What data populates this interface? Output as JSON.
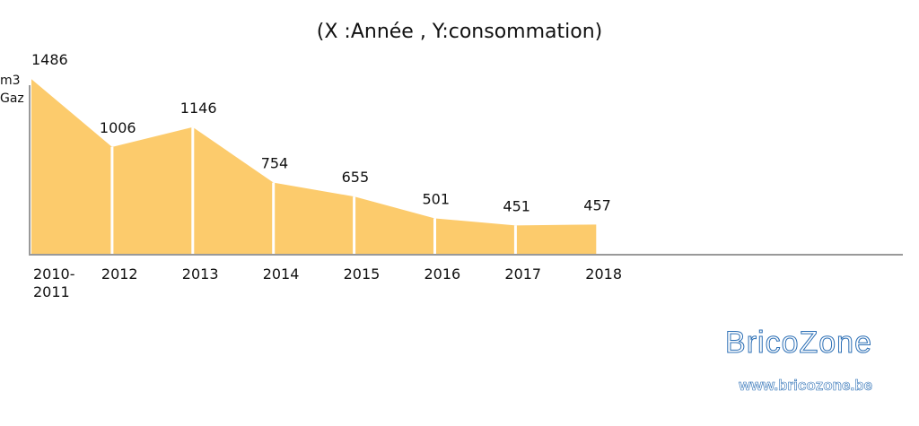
{
  "chart_data": {
    "type": "area",
    "title": "(X :Année , Y:consommation)",
    "y_label": "m3 Gaz",
    "categories": [
      "2010-2011",
      "2012",
      "2013",
      "2014",
      "2015",
      "2016",
      "2017",
      "2018"
    ],
    "values": [
      1486,
      1006,
      1146,
      754,
      655,
      501,
      451,
      457
    ],
    "color": "#fccb6c",
    "ylim": [
      250,
      1500
    ]
  },
  "watermark": {
    "brand": "BricoZone",
    "url": "www.bricozone.be"
  }
}
